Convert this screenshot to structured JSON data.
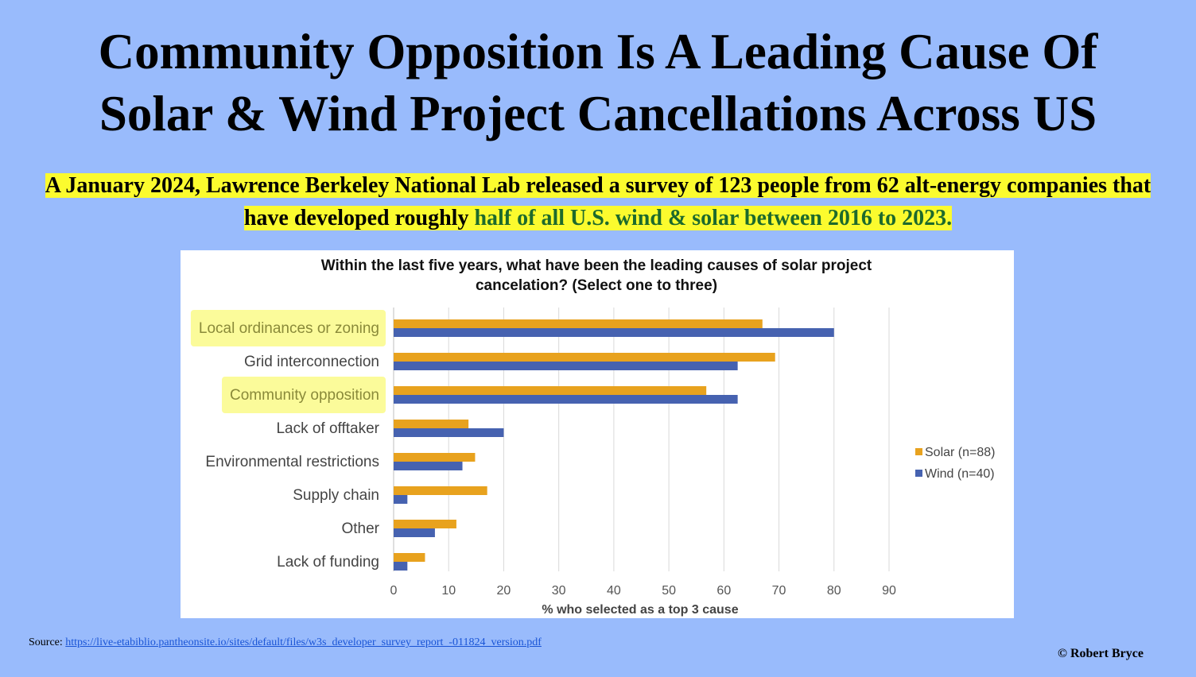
{
  "header": {
    "title_line1": "Community Opposition Is A Leading Cause Of",
    "title_line2": "Solar & Wind Project Cancellations Across US",
    "subtitle_part1": "A January 2024, Lawrence Berkeley National Lab released a survey of 123 people from 62 alt-energy companies that have developed roughly",
    "subtitle_part2": "half of all U.S. wind & solar between 2016 to 2023."
  },
  "colors": {
    "background": "#99bbfc",
    "highlight": "#fbfb2e",
    "solar": "#e8a21e",
    "wind": "#4662b0",
    "green_text": "#1d6a2c"
  },
  "chart_data": {
    "type": "bar",
    "orientation": "horizontal",
    "title_line1": "Within the last five years, what have been the leading causes of solar project",
    "title_line2": "cancelation? (Select one to three)",
    "categories": [
      "Local ordinances or zoning",
      "Grid interconnection",
      "Community opposition",
      "Lack of offtaker",
      "Environmental restrictions",
      "Supply chain",
      "Other",
      "Lack of funding"
    ],
    "highlighted_categories": [
      "Local ordinances or zoning",
      "Community opposition"
    ],
    "series": [
      {
        "name": "Solar (n=88)",
        "color": "#e8a21e",
        "values": [
          67,
          69.3,
          56.8,
          13.6,
          14.8,
          17,
          11.4,
          5.7
        ]
      },
      {
        "name": "Wind (n=40)",
        "color": "#4662b0",
        "values": [
          80,
          62.5,
          62.5,
          20,
          12.5,
          2.5,
          7.5,
          2.5
        ]
      }
    ],
    "xlabel": "% who selected as a top 3 cause",
    "xlim": [
      0,
      90
    ],
    "xticks": [
      0,
      10,
      20,
      30,
      40,
      50,
      60,
      70,
      80,
      90
    ],
    "grid": true,
    "legend": "right"
  },
  "footer": {
    "source_label": "Source",
    "source_url": "https://live-etabiblio.pantheonsite.io/sites/default/files/w3s_developer_survey_report_-011824_version.pdf",
    "credit": "© Robert Bryce"
  }
}
